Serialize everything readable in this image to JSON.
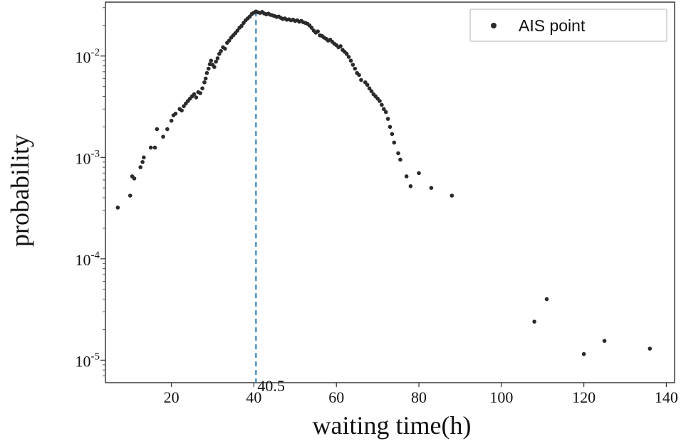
{
  "chart_data": {
    "type": "scatter",
    "xlabel": "waiting time(h)",
    "ylabel": "probability",
    "xlim": [
      4,
      142
    ],
    "ylim": [
      6e-06,
      0.034
    ],
    "y_scale": "log",
    "x_ticks": [
      20,
      40,
      60,
      80,
      100,
      120,
      140
    ],
    "x_tick_labels": [
      "20",
      "40",
      "60",
      "80",
      "100",
      "120",
      "140"
    ],
    "y_ticks": [
      {
        "value": 0.01,
        "base": "10",
        "exp": "-2"
      },
      {
        "value": 0.001,
        "base": "10",
        "exp": "-3"
      },
      {
        "value": 0.0001,
        "base": "10",
        "exp": "-4"
      },
      {
        "value": 1e-05,
        "base": "10",
        "exp": "-5"
      }
    ],
    "grid": false,
    "legend": {
      "position": "top-right",
      "entries": [
        "AIS point"
      ]
    },
    "marker_color": "#2a2a2a",
    "vline": {
      "x": 40.5,
      "label": "40.5",
      "color": "#1f77b4",
      "style": "dashed"
    },
    "series": [
      {
        "name": "AIS point",
        "points": [
          [
            7,
            0.00032
          ],
          [
            10,
            0.00042
          ],
          [
            10.5,
            0.00065
          ],
          [
            11,
            0.00062
          ],
          [
            12.5,
            0.0008
          ],
          [
            13,
            0.0009
          ],
          [
            13.3,
            0.001
          ],
          [
            15,
            0.00125
          ],
          [
            16,
            0.00125
          ],
          [
            16.5,
            0.0019
          ],
          [
            18,
            0.0016
          ],
          [
            19,
            0.0019
          ],
          [
            20,
            0.0023
          ],
          [
            20.5,
            0.0026
          ],
          [
            21,
            0.0027
          ],
          [
            22,
            0.003
          ],
          [
            22.5,
            0.0029
          ],
          [
            23,
            0.0032
          ],
          [
            23.5,
            0.0034
          ],
          [
            24,
            0.0036
          ],
          [
            24.5,
            0.0038
          ],
          [
            25,
            0.004
          ],
          [
            25.5,
            0.0042
          ],
          [
            26,
            0.0039
          ],
          [
            26.5,
            0.0044
          ],
          [
            27,
            0.0043
          ],
          [
            27.5,
            0.0048
          ],
          [
            28,
            0.0055
          ],
          [
            28.3,
            0.006
          ],
          [
            28.6,
            0.0068
          ],
          [
            29,
            0.0075
          ],
          [
            29.3,
            0.0083
          ],
          [
            29.6,
            0.009
          ],
          [
            30,
            0.0082
          ],
          [
            30.4,
            0.0078
          ],
          [
            30.8,
            0.0088
          ],
          [
            31.2,
            0.0095
          ],
          [
            31.6,
            0.0105
          ],
          [
            32,
            0.0112
          ],
          [
            32.5,
            0.0122
          ],
          [
            33,
            0.0118
          ],
          [
            33.5,
            0.0135
          ],
          [
            34,
            0.0142
          ],
          [
            34.5,
            0.0152
          ],
          [
            35,
            0.016
          ],
          [
            35.5,
            0.0168
          ],
          [
            36,
            0.0178
          ],
          [
            36.5,
            0.019
          ],
          [
            37,
            0.0198
          ],
          [
            37.5,
            0.0212
          ],
          [
            38,
            0.0225
          ],
          [
            38.5,
            0.0235
          ],
          [
            39,
            0.0245
          ],
          [
            39.5,
            0.026
          ],
          [
            40,
            0.0268
          ],
          [
            40.5,
            0.0275
          ],
          [
            41,
            0.027
          ],
          [
            41.5,
            0.0266
          ],
          [
            42,
            0.0272
          ],
          [
            42.5,
            0.0263
          ],
          [
            43,
            0.0258
          ],
          [
            43.5,
            0.0262
          ],
          [
            44,
            0.0255
          ],
          [
            44.5,
            0.0252
          ],
          [
            45,
            0.0248
          ],
          [
            45.5,
            0.0243
          ],
          [
            46,
            0.0245
          ],
          [
            46.5,
            0.0238
          ],
          [
            47,
            0.0232
          ],
          [
            47.5,
            0.0235
          ],
          [
            48,
            0.0228
          ],
          [
            48.5,
            0.023
          ],
          [
            49,
            0.0225
          ],
          [
            49.5,
            0.0228
          ],
          [
            50,
            0.0222
          ],
          [
            50.5,
            0.0225
          ],
          [
            51,
            0.0218
          ],
          [
            51.5,
            0.0222
          ],
          [
            52,
            0.0215
          ],
          [
            52.5,
            0.0212
          ],
          [
            53,
            0.0208
          ],
          [
            53.5,
            0.02
          ],
          [
            54,
            0.019
          ],
          [
            54.5,
            0.0178
          ],
          [
            55,
            0.017
          ],
          [
            55.5,
            0.0175
          ],
          [
            56,
            0.016
          ],
          [
            56.5,
            0.0158
          ],
          [
            57,
            0.0152
          ],
          [
            57.5,
            0.0148
          ],
          [
            58,
            0.0142
          ],
          [
            58.5,
            0.0145
          ],
          [
            59,
            0.0138
          ],
          [
            59.5,
            0.0132
          ],
          [
            60,
            0.0128
          ],
          [
            60.5,
            0.0122
          ],
          [
            61,
            0.0125
          ],
          [
            61.5,
            0.0115
          ],
          [
            62,
            0.011
          ],
          [
            62.5,
            0.0105
          ],
          [
            63,
            0.0098
          ],
          [
            63.5,
            0.009
          ],
          [
            64,
            0.0082
          ],
          [
            64.5,
            0.0075
          ],
          [
            65,
            0.0068
          ],
          [
            65.5,
            0.0065
          ],
          [
            66,
            0.0058
          ],
          [
            67,
            0.0055
          ],
          [
            67.5,
            0.0052
          ],
          [
            68,
            0.0048
          ],
          [
            68.5,
            0.0045
          ],
          [
            69,
            0.0042
          ],
          [
            69.5,
            0.004
          ],
          [
            70,
            0.0038
          ],
          [
            70.5,
            0.0036
          ],
          [
            71,
            0.0033
          ],
          [
            71.5,
            0.003
          ],
          [
            72,
            0.0028
          ],
          [
            72.5,
            0.0024
          ],
          [
            73,
            0.002
          ],
          [
            73.5,
            0.0017
          ],
          [
            74,
            0.0014
          ],
          [
            75,
            0.0011
          ],
          [
            75.5,
            0.00095
          ],
          [
            77,
            0.00065
          ],
          [
            78,
            0.00052
          ],
          [
            80,
            0.0007
          ],
          [
            83,
            0.0005
          ],
          [
            88,
            0.00042
          ],
          [
            108,
            2.4e-05
          ],
          [
            111,
            4e-05
          ],
          [
            120,
            1.15e-05
          ],
          [
            125,
            1.55e-05
          ],
          [
            136,
            1.3e-05
          ]
        ]
      }
    ]
  }
}
